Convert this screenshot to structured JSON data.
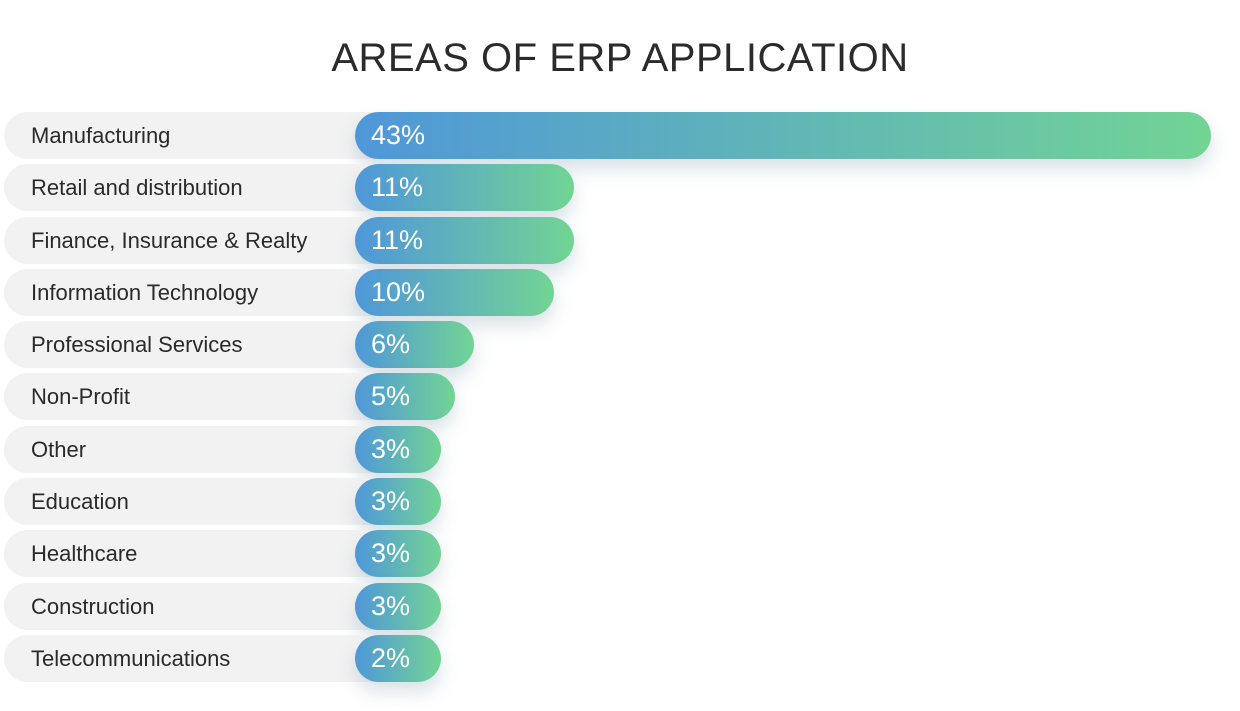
{
  "colors": {
    "bar_start": "#4f97d9",
    "bar_end": "#72d494",
    "label_bg": "#f2f2f2",
    "title_color": "#2b2b2b"
  },
  "chart_data": {
    "type": "bar",
    "orientation": "horizontal",
    "title": "AREAS OF ERP APPLICATION",
    "xlabel": "",
    "ylabel": "",
    "unit": "%",
    "xlim": [
      0,
      43
    ],
    "categories": [
      "Manufacturing",
      "Retail and distribution",
      "Finance, Insurance & Realty",
      "Information Technology",
      "Professional Services",
      "Non-Profit",
      "Other",
      "Education",
      "Healthcare",
      "Construction",
      "Telecommunications"
    ],
    "values": [
      43,
      11,
      11,
      10,
      6,
      5,
      3,
      3,
      3,
      3,
      2
    ],
    "value_labels": [
      "43%",
      "11%",
      "11%",
      "10%",
      "6%",
      "5%",
      "3%",
      "3%",
      "3%",
      "3%",
      "2%"
    ]
  }
}
